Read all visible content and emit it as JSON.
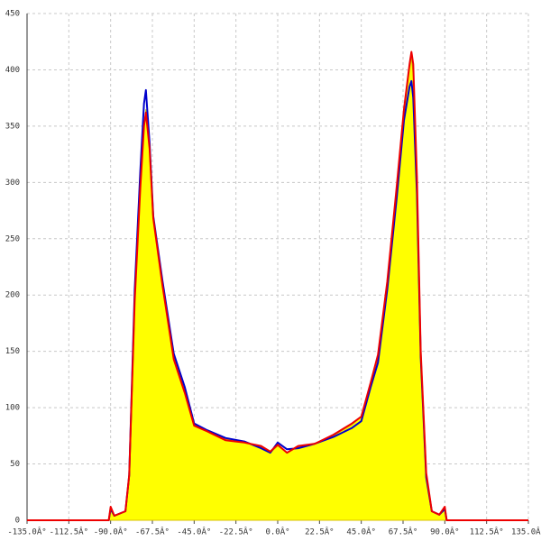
{
  "chart_data": {
    "type": "area",
    "x": [
      -135,
      -91,
      -90,
      -88,
      -82,
      -80,
      -77,
      -74,
      -72,
      -71,
      -69,
      -67,
      -62,
      -56,
      -50,
      -45,
      -38,
      -28,
      -18,
      -9,
      -4,
      0,
      5,
      11,
      20,
      30,
      40,
      45,
      50,
      54,
      59,
      64,
      68,
      71,
      72,
      73,
      75,
      77,
      80,
      83,
      87,
      90,
      91,
      135
    ],
    "series": [
      {
        "color": "#ffff00",
        "fill": true,
        "values": [
          0,
          0,
          10,
          4,
          8,
          40,
          200,
          300,
          350,
          365,
          330,
          270,
          210,
          145,
          115,
          85,
          80,
          72,
          70,
          65,
          60,
          66,
          60,
          65,
          68,
          75,
          85,
          92,
          120,
          145,
          210,
          290,
          360,
          400,
          410,
          395,
          300,
          150,
          40,
          8,
          5,
          10,
          0,
          0
        ]
      },
      {
        "color": "#0000cc",
        "fill": false,
        "values": [
          0,
          0,
          10,
          4,
          8,
          40,
          205,
          310,
          370,
          382,
          335,
          270,
          212,
          148,
          118,
          86,
          80,
          73,
          70,
          64,
          60,
          69,
          63,
          64,
          68,
          74,
          82,
          88,
          118,
          140,
          205,
          285,
          355,
          385,
          390,
          375,
          290,
          145,
          38,
          8,
          5,
          10,
          0,
          0
        ]
      },
      {
        "color": "#ee0000",
        "fill": false,
        "values": [
          0,
          0,
          12,
          4,
          8,
          40,
          195,
          295,
          350,
          362,
          330,
          268,
          208,
          143,
          113,
          84,
          79,
          71,
          69,
          66,
          61,
          67,
          60,
          66,
          68,
          76,
          86,
          92,
          122,
          147,
          212,
          295,
          365,
          405,
          416,
          405,
          305,
          150,
          42,
          8,
          5,
          12,
          0,
          0
        ]
      }
    ],
    "xlim": [
      -135,
      135
    ],
    "ylim": [
      0,
      450
    ],
    "xticks": [
      {
        "value": -135,
        "label": "-135.0Â°"
      },
      {
        "value": -112.5,
        "label": "-112.5Â°"
      },
      {
        "value": -90,
        "label": "-90.0Â°"
      },
      {
        "value": -67.5,
        "label": "-67.5Â°"
      },
      {
        "value": -45,
        "label": "-45.0Â°"
      },
      {
        "value": -22.5,
        "label": "-22.5Â°"
      },
      {
        "value": 0,
        "label": "0.0Â°"
      },
      {
        "value": 22.5,
        "label": "22.5Â°"
      },
      {
        "value": 45,
        "label": "45.0Â°"
      },
      {
        "value": 67.5,
        "label": "67.5Â°"
      },
      {
        "value": 90,
        "label": "90.0Â°"
      },
      {
        "value": 112.5,
        "label": "112.5Â°"
      },
      {
        "value": 135,
        "label": "135.0Â°"
      }
    ],
    "yticks": [
      0,
      50,
      100,
      150,
      200,
      250,
      300,
      350,
      400,
      450
    ],
    "grid": true
  }
}
